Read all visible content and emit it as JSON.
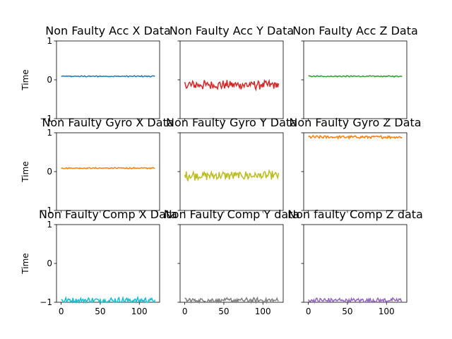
{
  "chart_data": [
    {
      "type": "line",
      "title": "Non Faulty Acc X Data",
      "ylabel": "Time",
      "xlim": [
        -6,
        126
      ],
      "ylim": [
        -1,
        1
      ],
      "xticks": [
        0,
        50,
        100
      ],
      "yticks": [
        -1,
        0,
        1
      ],
      "color": "#1f77b4",
      "series": [
        {
          "center": 0.09,
          "amplitude": 0.012,
          "noise": 0.006
        }
      ]
    },
    {
      "type": "line",
      "title": "Non Faulty Acc Y Data",
      "ylabel": "",
      "xlim": [
        -6,
        126
      ],
      "ylim": [
        -1,
        1
      ],
      "xticks": [
        0,
        50,
        100
      ],
      "yticks": [
        -1,
        0,
        1
      ],
      "color": "#d62728",
      "series": [
        {
          "center": -0.13,
          "amplitude": 0.1,
          "noise": 0.03
        }
      ]
    },
    {
      "type": "line",
      "title": "Non Faulty Acc Z Data",
      "ylabel": "",
      "xlim": [
        -6,
        126
      ],
      "ylim": [
        -1,
        1
      ],
      "xticks": [
        0,
        50,
        100
      ],
      "yticks": [
        -1,
        0,
        1
      ],
      "color": "#2ca02c",
      "series": [
        {
          "center": 0.09,
          "amplitude": 0.012,
          "noise": 0.006
        }
      ]
    },
    {
      "type": "line",
      "title": "Non Faulty Gyro X Data",
      "ylabel": "Time",
      "xlim": [
        -6,
        126
      ],
      "ylim": [
        -1,
        1
      ],
      "xticks": [
        0,
        50,
        100
      ],
      "yticks": [
        -1,
        0,
        1
      ],
      "color": "#ff7f0e",
      "series": [
        {
          "center": 0.09,
          "amplitude": 0.012,
          "noise": 0.006
        }
      ]
    },
    {
      "type": "line",
      "title": "Non Faulty Gyro Y Data",
      "ylabel": "",
      "xlim": [
        -6,
        126
      ],
      "ylim": [
        -1,
        1
      ],
      "xticks": [
        0,
        50,
        100
      ],
      "yticks": [
        -1,
        0,
        1
      ],
      "color": "#bcbd22",
      "series": [
        {
          "center": -0.1,
          "amplitude": 0.1,
          "noise": 0.03
        }
      ]
    },
    {
      "type": "line",
      "title": "Non Faulty Gyro Z Data",
      "ylabel": "",
      "xlim": [
        -6,
        126
      ],
      "ylim": [
        -1,
        1
      ],
      "xticks": [
        0,
        50,
        100
      ],
      "yticks": [
        -1,
        0,
        1
      ],
      "color": "#ff7f0e",
      "series": [
        {
          "center": 0.89,
          "amplitude": 0.03,
          "noise": 0.01
        }
      ]
    },
    {
      "type": "line",
      "title": "Non Faulty Comp X Data",
      "ylabel": "Time",
      "xlim": [
        -6,
        126
      ],
      "ylim": [
        -1,
        1
      ],
      "xticks": [
        0,
        50,
        100
      ],
      "yticks": [
        -1,
        0,
        1
      ],
      "color": "#17becf",
      "series": [
        {
          "center": -0.95,
          "amplitude": 0.06,
          "noise": 0.02
        }
      ]
    },
    {
      "type": "line",
      "title": "Non Faulty Comp Y data",
      "ylabel": "",
      "xlim": [
        -6,
        126
      ],
      "ylim": [
        -1,
        1
      ],
      "xticks": [
        0,
        50,
        100
      ],
      "yticks": [
        -1,
        0,
        1
      ],
      "color": "#7f7f7f",
      "series": [
        {
          "center": -0.95,
          "amplitude": 0.05,
          "noise": 0.02
        }
      ]
    },
    {
      "type": "line",
      "title": "Non faulty Comp Z data",
      "ylabel": "",
      "xlim": [
        -6,
        126
      ],
      "ylim": [
        -1,
        1
      ],
      "xticks": [
        0,
        50,
        100
      ],
      "yticks": [
        -1,
        0,
        1
      ],
      "color": "#9467bd",
      "series": [
        {
          "center": -0.95,
          "amplitude": 0.05,
          "noise": 0.02
        }
      ]
    }
  ]
}
